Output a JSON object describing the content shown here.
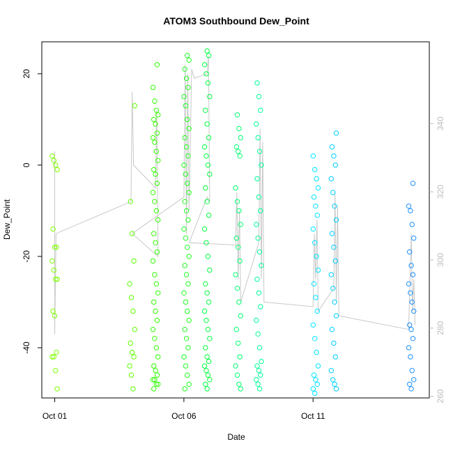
{
  "chart_data": {
    "type": "scatter",
    "title": "ATOM3 Southbound Dew_Point",
    "xlabel": "Date",
    "ylabel": "Dew_Point",
    "x_ticks": [
      "Oct 01",
      "Oct 06",
      "Oct 11"
    ],
    "x_tick_days": [
      1,
      6,
      11
    ],
    "xlim_days": [
      0.5,
      15.5
    ],
    "y_ticks": [
      -40,
      -20,
      0,
      20
    ],
    "ylim": [
      -51,
      27
    ],
    "y2_ticks": [
      260,
      280,
      300,
      320,
      340
    ],
    "y2lim": [
      259.5,
      364
    ],
    "grid": false,
    "colors": {
      "axis": "#000000",
      "secondary_axis": "#bdbdbd",
      "line": "#c8c8c8",
      "points_early": "#7fff00",
      "points_mid": "#00ff40",
      "points_late": "#00e5ff",
      "points_end": "#1e90ff"
    },
    "clusters": [
      {
        "day": 1.0,
        "values": [
          2,
          1,
          0,
          -1,
          -14,
          -18,
          -18,
          -21,
          -23,
          -25,
          -25,
          -32,
          -33,
          -41,
          -42,
          -42,
          -45,
          -49
        ],
        "color": "#7fff00"
      },
      {
        "day": 4.0,
        "values": [
          13,
          -8,
          -15,
          -21,
          -26,
          -29,
          -32,
          -36,
          -39,
          -41,
          -42,
          -44,
          -46,
          -49
        ],
        "color": "#60ff00"
      },
      {
        "day": 4.9,
        "values": [
          22,
          17,
          14,
          12,
          11,
          10,
          9,
          7,
          6,
          5,
          3,
          1,
          -1,
          -2,
          -4,
          -6,
          -8,
          -10,
          -12,
          -15,
          -17,
          -19,
          -21,
          -24,
          -26,
          -28,
          -30,
          -32,
          -34,
          -36,
          -38,
          -40,
          -42,
          -44,
          -45,
          -46,
          -47,
          -47,
          -48,
          -48,
          -49
        ],
        "color": "#30ff00"
      },
      {
        "day": 6.1,
        "values": [
          24,
          23,
          21,
          19,
          17,
          15,
          13,
          10,
          8,
          6,
          4,
          2,
          0,
          -2,
          -4,
          -6,
          -8,
          -10,
          -12,
          -14,
          -16,
          -18,
          -20,
          -22,
          -24,
          -26,
          -28,
          -30,
          -32,
          -34,
          -36,
          -38,
          -40,
          -42,
          -44,
          -46,
          -48,
          -49
        ],
        "color": "#20ff20"
      },
      {
        "day": 6.9,
        "values": [
          25,
          24,
          22,
          20,
          18,
          15,
          12,
          9,
          6,
          4,
          2,
          0,
          -2,
          -5,
          -8,
          -11,
          -14,
          -17,
          -20,
          -23,
          -26,
          -28,
          -30,
          -32,
          -34,
          -36,
          -38,
          -40,
          -42,
          -43,
          -44,
          -45,
          -46,
          -47,
          -48,
          -49
        ],
        "color": "#00ff40"
      },
      {
        "day": 8.1,
        "values": [
          11,
          8,
          6,
          4,
          3,
          2,
          -5,
          -8,
          -10,
          -13,
          -16,
          -18,
          -21,
          -24,
          -27,
          -30,
          -33,
          -36,
          -39,
          -42,
          -44,
          -46,
          -48,
          -49
        ],
        "color": "#00ff70"
      },
      {
        "day": 8.9,
        "values": [
          18,
          15,
          12,
          9,
          6,
          3,
          0,
          -3,
          -7,
          -10,
          -13,
          -16,
          -19,
          -22,
          -25,
          -28,
          -31,
          -34,
          -37,
          -40,
          -43,
          -44,
          -45,
          -46,
          -47,
          -48,
          -49
        ],
        "color": "#00ff99"
      },
      {
        "day": 11.1,
        "values": [
          2,
          -1,
          -3,
          -5,
          -7,
          -9,
          -11,
          -14,
          -17,
          -20,
          -23,
          -26,
          -29,
          -32,
          -35,
          -38,
          -41,
          -44,
          -46,
          -47,
          -48,
          -49,
          -50
        ],
        "color": "#00e5ff"
      },
      {
        "day": 11.8,
        "values": [
          7,
          4,
          2,
          0,
          -3,
          -6,
          -9,
          -12,
          -15,
          -18,
          -21,
          -24,
          -27,
          -30,
          -33,
          -36,
          -39,
          -42,
          -45,
          -47,
          -48,
          -49
        ],
        "color": "#00d0ff"
      },
      {
        "day": 14.8,
        "values": [
          -4,
          -9,
          -10,
          -13,
          -16,
          -19,
          -22,
          -24,
          -26,
          -28,
          -30,
          -32,
          -35,
          -36,
          -38,
          -40,
          -42,
          -45,
          -47,
          -48,
          -49
        ],
        "color": "#1e90ff"
      }
    ],
    "line_series": {
      "color": "#c8c8c8",
      "path": [
        [
          1.0,
          3
        ],
        [
          1.0,
          -37
        ],
        [
          1.05,
          -15
        ],
        [
          3.95,
          -8
        ],
        [
          4.0,
          16
        ],
        [
          4.05,
          0
        ],
        [
          4.9,
          -5
        ],
        [
          4.95,
          12
        ],
        [
          5.0,
          -20
        ],
        [
          4.0,
          -15
        ],
        [
          6.0,
          -7
        ],
        [
          6.05,
          22
        ],
        [
          6.1,
          -15
        ],
        [
          6.15,
          20
        ],
        [
          6.2,
          -10
        ],
        [
          6.3,
          21
        ],
        [
          6.4,
          19
        ],
        [
          6.9,
          20
        ],
        [
          6.95,
          24
        ],
        [
          7.0,
          -8
        ],
        [
          6.9,
          -7
        ],
        [
          6.2,
          -17
        ],
        [
          8.0,
          -17.5
        ],
        [
          8.05,
          -6
        ],
        [
          8.1,
          -25
        ],
        [
          8.15,
          -10
        ],
        [
          8.2,
          -30
        ],
        [
          8.9,
          -17
        ],
        [
          8.95,
          8
        ],
        [
          9.0,
          -25
        ],
        [
          9.05,
          5
        ],
        [
          9.1,
          -30
        ],
        [
          11.0,
          -31
        ],
        [
          11.05,
          -15
        ],
        [
          11.1,
          -25
        ],
        [
          11.15,
          -12
        ],
        [
          11.2,
          -32
        ],
        [
          11.8,
          -27
        ],
        [
          11.85,
          -6
        ],
        [
          11.9,
          -30
        ],
        [
          11.95,
          -9
        ],
        [
          12.0,
          -33
        ],
        [
          14.7,
          -36
        ],
        [
          14.8,
          -15
        ],
        [
          14.85,
          -32
        ],
        [
          14.9,
          -25
        ],
        [
          14.95,
          -35
        ]
      ]
    }
  }
}
